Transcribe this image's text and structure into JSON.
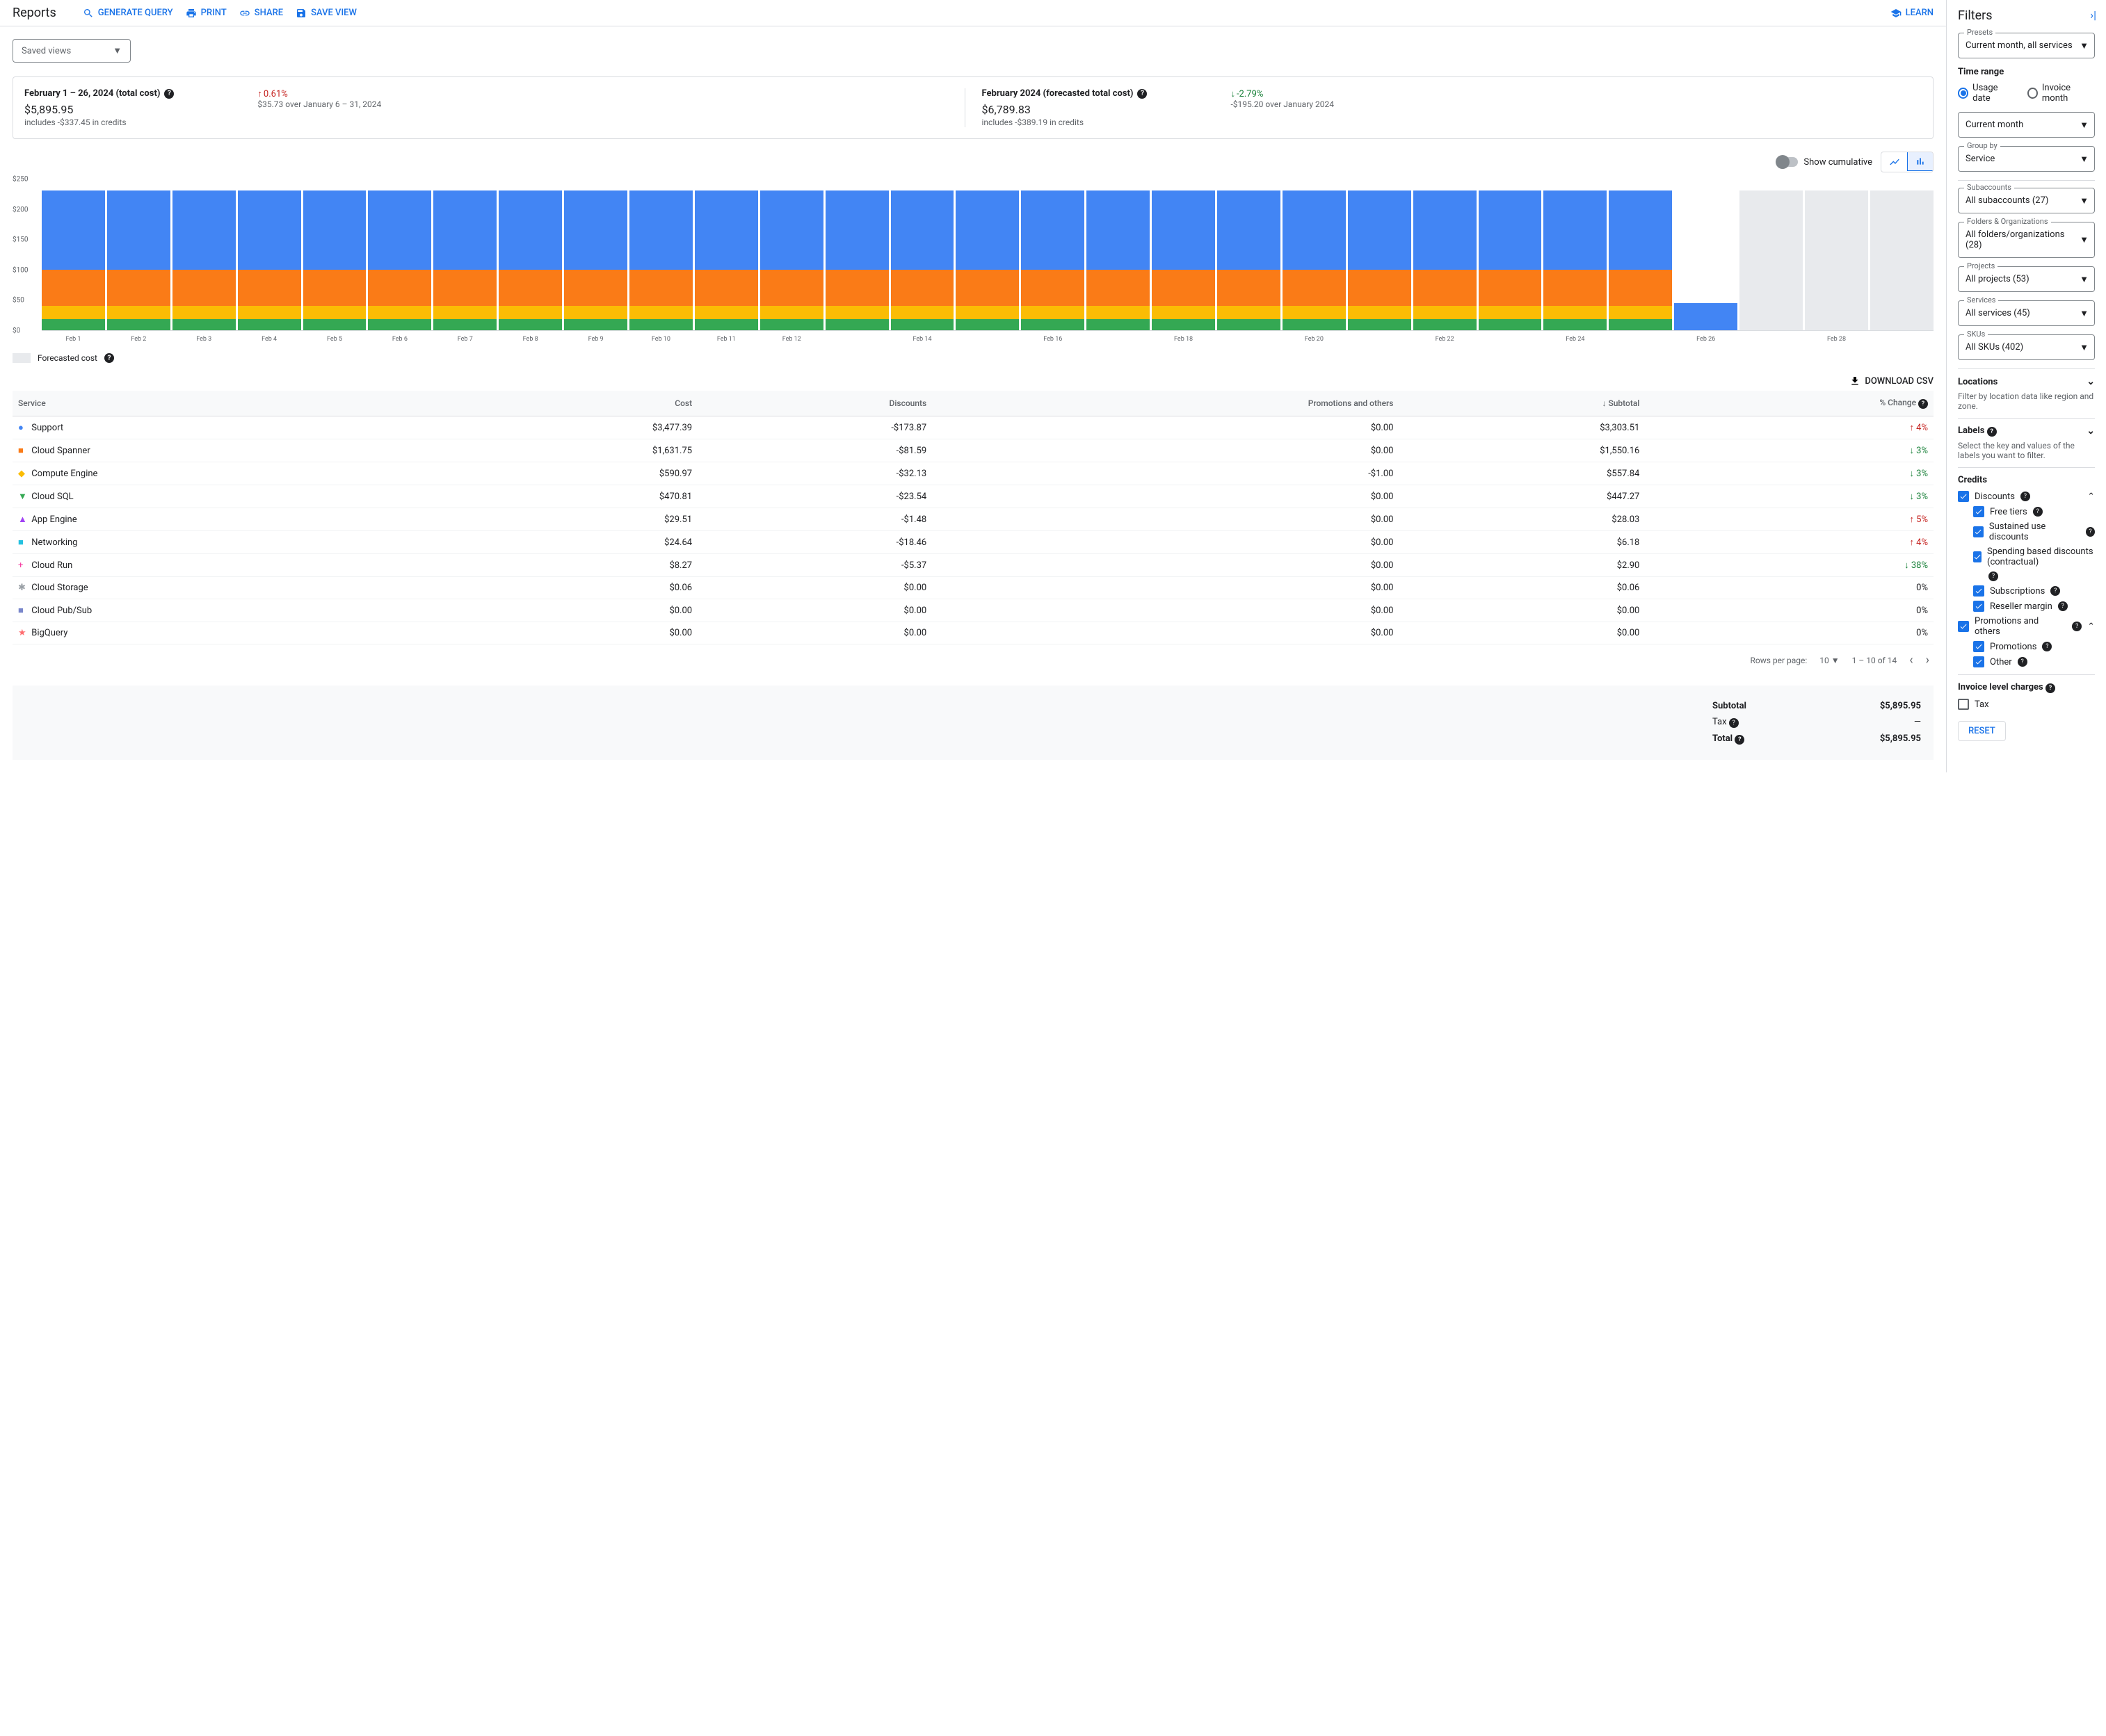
{
  "header": {
    "title": "Reports",
    "actions": {
      "generate_query": "GENERATE QUERY",
      "print": "PRINT",
      "share": "SHARE",
      "save_view": "SAVE VIEW",
      "learn": "LEARN"
    }
  },
  "saved_views_label": "Saved views",
  "summary": {
    "card1": {
      "title": "February 1 – 26, 2024 (total cost)",
      "amount": "$5,895.95",
      "sub": "includes -$337.45 in credits",
      "delta": "0.61%",
      "delta_dir": "up",
      "delta_sub": "$35.73 over January 6 – 31, 2024"
    },
    "card2": {
      "title": "February 2024 (forecasted total cost)",
      "amount": "$6,789.83",
      "sub": "includes -$389.19 in credits",
      "delta": "-2.79%",
      "delta_dir": "down",
      "delta_sub": "-$195.20 over January 2024"
    }
  },
  "chart_controls": {
    "cumulative": "Show cumulative"
  },
  "chart": {
    "type": "stacked-bar",
    "y_max": 250,
    "y_ticks": [
      "$250",
      "$200",
      "$150",
      "$100",
      "$50",
      "$0"
    ],
    "y_tick_pos": [
      0,
      20,
      40,
      60,
      80,
      100
    ],
    "colors": {
      "blue": "#4285f4",
      "orange": "#fa7b17",
      "yellow": "#fbbc04",
      "green": "#34a853",
      "grey": "#e8eaed",
      "axis": "#dadce0",
      "label": "#5f6368"
    },
    "bars": [
      {
        "label": "Feb 1",
        "segments": [
          {
            "c": "green",
            "v": 18
          },
          {
            "c": "yellow",
            "v": 22
          },
          {
            "c": "orange",
            "v": 60
          },
          {
            "c": "blue",
            "v": 130
          }
        ]
      },
      {
        "label": "Feb 2",
        "segments": [
          {
            "c": "green",
            "v": 18
          },
          {
            "c": "yellow",
            "v": 22
          },
          {
            "c": "orange",
            "v": 60
          },
          {
            "c": "blue",
            "v": 130
          }
        ]
      },
      {
        "label": "Feb 3",
        "segments": [
          {
            "c": "green",
            "v": 18
          },
          {
            "c": "yellow",
            "v": 22
          },
          {
            "c": "orange",
            "v": 60
          },
          {
            "c": "blue",
            "v": 130
          }
        ]
      },
      {
        "label": "Feb 4",
        "segments": [
          {
            "c": "green",
            "v": 18
          },
          {
            "c": "yellow",
            "v": 22
          },
          {
            "c": "orange",
            "v": 60
          },
          {
            "c": "blue",
            "v": 130
          }
        ]
      },
      {
        "label": "Feb 5",
        "segments": [
          {
            "c": "green",
            "v": 18
          },
          {
            "c": "yellow",
            "v": 22
          },
          {
            "c": "orange",
            "v": 60
          },
          {
            "c": "blue",
            "v": 130
          }
        ]
      },
      {
        "label": "Feb 6",
        "segments": [
          {
            "c": "green",
            "v": 18
          },
          {
            "c": "yellow",
            "v": 22
          },
          {
            "c": "orange",
            "v": 60
          },
          {
            "c": "blue",
            "v": 130
          }
        ]
      },
      {
        "label": "Feb 7",
        "segments": [
          {
            "c": "green",
            "v": 18
          },
          {
            "c": "yellow",
            "v": 22
          },
          {
            "c": "orange",
            "v": 60
          },
          {
            "c": "blue",
            "v": 130
          }
        ]
      },
      {
        "label": "Feb 8",
        "segments": [
          {
            "c": "green",
            "v": 18
          },
          {
            "c": "yellow",
            "v": 22
          },
          {
            "c": "orange",
            "v": 60
          },
          {
            "c": "blue",
            "v": 130
          }
        ]
      },
      {
        "label": "Feb 9",
        "segments": [
          {
            "c": "green",
            "v": 18
          },
          {
            "c": "yellow",
            "v": 22
          },
          {
            "c": "orange",
            "v": 60
          },
          {
            "c": "blue",
            "v": 130
          }
        ]
      },
      {
        "label": "Feb 10",
        "segments": [
          {
            "c": "green",
            "v": 18
          },
          {
            "c": "yellow",
            "v": 22
          },
          {
            "c": "orange",
            "v": 60
          },
          {
            "c": "blue",
            "v": 130
          }
        ]
      },
      {
        "label": "Feb 11",
        "segments": [
          {
            "c": "green",
            "v": 18
          },
          {
            "c": "yellow",
            "v": 22
          },
          {
            "c": "orange",
            "v": 60
          },
          {
            "c": "blue",
            "v": 130
          }
        ]
      },
      {
        "label": "Feb 12",
        "segments": [
          {
            "c": "green",
            "v": 18
          },
          {
            "c": "yellow",
            "v": 22
          },
          {
            "c": "orange",
            "v": 60
          },
          {
            "c": "blue",
            "v": 130
          }
        ]
      },
      {
        "label": "",
        "segments": [
          {
            "c": "green",
            "v": 18
          },
          {
            "c": "yellow",
            "v": 22
          },
          {
            "c": "orange",
            "v": 60
          },
          {
            "c": "blue",
            "v": 130
          }
        ]
      },
      {
        "label": "Feb 14",
        "segments": [
          {
            "c": "green",
            "v": 18
          },
          {
            "c": "yellow",
            "v": 22
          },
          {
            "c": "orange",
            "v": 60
          },
          {
            "c": "blue",
            "v": 130
          }
        ]
      },
      {
        "label": "",
        "segments": [
          {
            "c": "green",
            "v": 18
          },
          {
            "c": "yellow",
            "v": 22
          },
          {
            "c": "orange",
            "v": 60
          },
          {
            "c": "blue",
            "v": 130
          }
        ]
      },
      {
        "label": "Feb 16",
        "segments": [
          {
            "c": "green",
            "v": 18
          },
          {
            "c": "yellow",
            "v": 22
          },
          {
            "c": "orange",
            "v": 60
          },
          {
            "c": "blue",
            "v": 130
          }
        ]
      },
      {
        "label": "",
        "segments": [
          {
            "c": "green",
            "v": 18
          },
          {
            "c": "yellow",
            "v": 22
          },
          {
            "c": "orange",
            "v": 60
          },
          {
            "c": "blue",
            "v": 130
          }
        ]
      },
      {
        "label": "Feb 18",
        "segments": [
          {
            "c": "green",
            "v": 18
          },
          {
            "c": "yellow",
            "v": 22
          },
          {
            "c": "orange",
            "v": 60
          },
          {
            "c": "blue",
            "v": 130
          }
        ]
      },
      {
        "label": "",
        "segments": [
          {
            "c": "green",
            "v": 18
          },
          {
            "c": "yellow",
            "v": 22
          },
          {
            "c": "orange",
            "v": 60
          },
          {
            "c": "blue",
            "v": 130
          }
        ]
      },
      {
        "label": "Feb 20",
        "segments": [
          {
            "c": "green",
            "v": 18
          },
          {
            "c": "yellow",
            "v": 22
          },
          {
            "c": "orange",
            "v": 60
          },
          {
            "c": "blue",
            "v": 130
          }
        ]
      },
      {
        "label": "",
        "segments": [
          {
            "c": "green",
            "v": 18
          },
          {
            "c": "yellow",
            "v": 22
          },
          {
            "c": "orange",
            "v": 60
          },
          {
            "c": "blue",
            "v": 130
          }
        ]
      },
      {
        "label": "Feb 22",
        "segments": [
          {
            "c": "green",
            "v": 18
          },
          {
            "c": "yellow",
            "v": 22
          },
          {
            "c": "orange",
            "v": 60
          },
          {
            "c": "blue",
            "v": 130
          }
        ]
      },
      {
        "label": "",
        "segments": [
          {
            "c": "green",
            "v": 18
          },
          {
            "c": "yellow",
            "v": 22
          },
          {
            "c": "orange",
            "v": 60
          },
          {
            "c": "blue",
            "v": 130
          }
        ]
      },
      {
        "label": "Feb 24",
        "segments": [
          {
            "c": "green",
            "v": 18
          },
          {
            "c": "yellow",
            "v": 22
          },
          {
            "c": "orange",
            "v": 60
          },
          {
            "c": "blue",
            "v": 130
          }
        ]
      },
      {
        "label": "",
        "segments": [
          {
            "c": "green",
            "v": 18
          },
          {
            "c": "yellow",
            "v": 22
          },
          {
            "c": "orange",
            "v": 60
          },
          {
            "c": "blue",
            "v": 130
          }
        ]
      },
      {
        "label": "Feb 26",
        "segments": [
          {
            "c": "blue",
            "v": 45
          }
        ]
      },
      {
        "label": "",
        "segments": [
          {
            "c": "grey",
            "v": 230
          }
        ]
      },
      {
        "label": "Feb 28",
        "segments": [
          {
            "c": "grey",
            "v": 230
          }
        ]
      },
      {
        "label": "",
        "segments": [
          {
            "c": "grey",
            "v": 230
          }
        ]
      }
    ],
    "forecast_label": "Forecasted cost"
  },
  "download_csv": "DOWNLOAD CSV",
  "table": {
    "columns": [
      "Service",
      "Cost",
      "Discounts",
      "Promotions and others",
      "Subtotal",
      "% Change"
    ],
    "rows": [
      {
        "color": "#4285f4",
        "shape": "●",
        "service": "Support",
        "cost": "$3,477.39",
        "discounts": "-$173.87",
        "promo": "$0.00",
        "subtotal": "$3,303.51",
        "change": "4%",
        "dir": "up"
      },
      {
        "color": "#fa7b17",
        "shape": "■",
        "service": "Cloud Spanner",
        "cost": "$1,631.75",
        "discounts": "-$81.59",
        "promo": "$0.00",
        "subtotal": "$1,550.16",
        "change": "3%",
        "dir": "down"
      },
      {
        "color": "#fbbc04",
        "shape": "◆",
        "service": "Compute Engine",
        "cost": "$590.97",
        "discounts": "-$32.13",
        "promo": "-$1.00",
        "subtotal": "$557.84",
        "change": "3%",
        "dir": "down"
      },
      {
        "color": "#34a853",
        "shape": "▼",
        "service": "Cloud SQL",
        "cost": "$470.81",
        "discounts": "-$23.54",
        "promo": "$0.00",
        "subtotal": "$447.27",
        "change": "3%",
        "dir": "down"
      },
      {
        "color": "#a142f4",
        "shape": "▲",
        "service": "App Engine",
        "cost": "$29.51",
        "discounts": "-$1.48",
        "promo": "$0.00",
        "subtotal": "$28.03",
        "change": "5%",
        "dir": "up"
      },
      {
        "color": "#24c1e0",
        "shape": "■",
        "service": "Networking",
        "cost": "$24.64",
        "discounts": "-$18.46",
        "promo": "$0.00",
        "subtotal": "$6.18",
        "change": "4%",
        "dir": "up"
      },
      {
        "color": "#f538a0",
        "shape": "+",
        "service": "Cloud Run",
        "cost": "$8.27",
        "discounts": "-$5.37",
        "promo": "$0.00",
        "subtotal": "$2.90",
        "change": "38%",
        "dir": "down"
      },
      {
        "color": "#9aa0a6",
        "shape": "✱",
        "service": "Cloud Storage",
        "cost": "$0.06",
        "discounts": "$0.00",
        "promo": "$0.00",
        "subtotal": "$0.06",
        "change": "0%",
        "dir": "none"
      },
      {
        "color": "#7986cb",
        "shape": "■",
        "service": "Cloud Pub/Sub",
        "cost": "$0.00",
        "discounts": "$0.00",
        "promo": "$0.00",
        "subtotal": "$0.00",
        "change": "0%",
        "dir": "none"
      },
      {
        "color": "#ff6d70",
        "shape": "★",
        "service": "BigQuery",
        "cost": "$0.00",
        "discounts": "$0.00",
        "promo": "$0.00",
        "subtotal": "$0.00",
        "change": "0%",
        "dir": "none"
      }
    ]
  },
  "pager": {
    "rpp_label": "Rows per page:",
    "rpp_value": "10",
    "range": "1 – 10 of 14"
  },
  "totals": {
    "subtotal_label": "Subtotal",
    "subtotal": "$5,895.95",
    "tax_label": "Tax",
    "tax": "—",
    "total_label": "Total",
    "total": "$5,895.95"
  },
  "filters": {
    "title": "Filters",
    "presets": {
      "label": "Presets",
      "value": "Current month, all services"
    },
    "time_range_label": "Time range",
    "radio_usage": "Usage date",
    "radio_invoice": "Invoice month",
    "month": "Current month",
    "group_by": {
      "label": "Group by",
      "value": "Service"
    },
    "subaccounts": {
      "label": "Subaccounts",
      "value": "All subaccounts (27)"
    },
    "folders": {
      "label": "Folders & Organizations",
      "value": "All folders/organizations (28)"
    },
    "projects": {
      "label": "Projects",
      "value": "All projects (53)"
    },
    "services": {
      "label": "Services",
      "value": "All services (45)"
    },
    "skus": {
      "label": "SKUs",
      "value": "All SKUs (402)"
    },
    "locations_label": "Locations",
    "locations_help": "Filter by location data like region and zone.",
    "labels_label": "Labels",
    "labels_help": "Select the key and values of the labels you want to filter.",
    "credits_label": "Credits",
    "credits": {
      "discounts": "Discounts",
      "free_tiers": "Free tiers",
      "sustained": "Sustained use discounts",
      "spending": "Spending based discounts (contractual)",
      "subs": "Subscriptions",
      "reseller": "Reseller margin",
      "promo_others": "Promotions and others",
      "promotions": "Promotions",
      "other": "Other"
    },
    "invoice_level": "Invoice level charges",
    "tax_chk": "Tax",
    "reset": "RESET"
  }
}
